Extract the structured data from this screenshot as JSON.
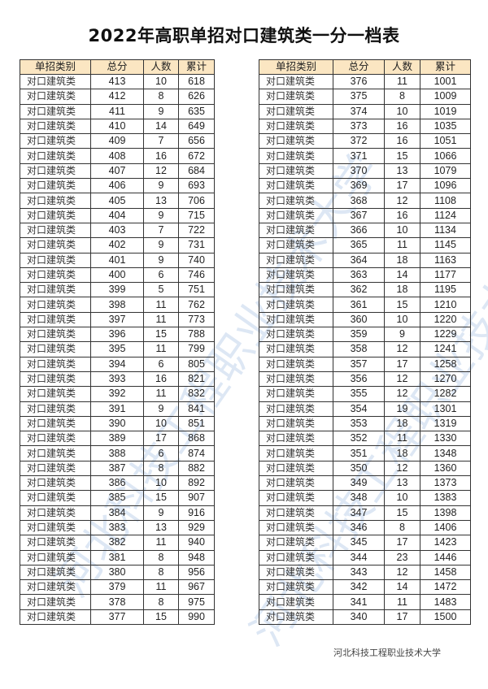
{
  "title": "2022年高职单招对口建筑类一分一档表",
  "headers": [
    "单招类别",
    "总分",
    "人数",
    "累计"
  ],
  "left_rows": [
    [
      "对口建筑类",
      413,
      10,
      618
    ],
    [
      "对口建筑类",
      412,
      8,
      626
    ],
    [
      "对口建筑类",
      411,
      9,
      635
    ],
    [
      "对口建筑类",
      410,
      14,
      649
    ],
    [
      "对口建筑类",
      409,
      7,
      656
    ],
    [
      "对口建筑类",
      408,
      16,
      672
    ],
    [
      "对口建筑类",
      407,
      12,
      684
    ],
    [
      "对口建筑类",
      406,
      9,
      693
    ],
    [
      "对口建筑类",
      405,
      13,
      706
    ],
    [
      "对口建筑类",
      404,
      9,
      715
    ],
    [
      "对口建筑类",
      403,
      7,
      722
    ],
    [
      "对口建筑类",
      402,
      9,
      731
    ],
    [
      "对口建筑类",
      401,
      9,
      740
    ],
    [
      "对口建筑类",
      400,
      6,
      746
    ],
    [
      "对口建筑类",
      399,
      5,
      751
    ],
    [
      "对口建筑类",
      398,
      11,
      762
    ],
    [
      "对口建筑类",
      397,
      11,
      773
    ],
    [
      "对口建筑类",
      396,
      15,
      788
    ],
    [
      "对口建筑类",
      395,
      11,
      799
    ],
    [
      "对口建筑类",
      394,
      6,
      805
    ],
    [
      "对口建筑类",
      393,
      16,
      821
    ],
    [
      "对口建筑类",
      392,
      11,
      832
    ],
    [
      "对口建筑类",
      391,
      9,
      841
    ],
    [
      "对口建筑类",
      390,
      10,
      851
    ],
    [
      "对口建筑类",
      389,
      17,
      868
    ],
    [
      "对口建筑类",
      388,
      6,
      874
    ],
    [
      "对口建筑类",
      387,
      8,
      882
    ],
    [
      "对口建筑类",
      386,
      10,
      892
    ],
    [
      "对口建筑类",
      385,
      15,
      907
    ],
    [
      "对口建筑类",
      384,
      9,
      916
    ],
    [
      "对口建筑类",
      383,
      13,
      929
    ],
    [
      "对口建筑类",
      382,
      11,
      940
    ],
    [
      "对口建筑类",
      381,
      8,
      948
    ],
    [
      "对口建筑类",
      380,
      8,
      956
    ],
    [
      "对口建筑类",
      379,
      11,
      967
    ],
    [
      "对口建筑类",
      378,
      8,
      975
    ],
    [
      "对口建筑类",
      377,
      15,
      990
    ]
  ],
  "right_rows": [
    [
      "对口建筑类",
      376,
      11,
      1001
    ],
    [
      "对口建筑类",
      375,
      8,
      1009
    ],
    [
      "对口建筑类",
      374,
      10,
      1019
    ],
    [
      "对口建筑类",
      373,
      16,
      1035
    ],
    [
      "对口建筑类",
      372,
      16,
      1051
    ],
    [
      "对口建筑类",
      371,
      15,
      1066
    ],
    [
      "对口建筑类",
      370,
      13,
      1079
    ],
    [
      "对口建筑类",
      369,
      17,
      1096
    ],
    [
      "对口建筑类",
      368,
      12,
      1108
    ],
    [
      "对口建筑类",
      367,
      16,
      1124
    ],
    [
      "对口建筑类",
      366,
      10,
      1134
    ],
    [
      "对口建筑类",
      365,
      11,
      1145
    ],
    [
      "对口建筑类",
      364,
      18,
      1163
    ],
    [
      "对口建筑类",
      363,
      14,
      1177
    ],
    [
      "对口建筑类",
      362,
      18,
      1195
    ],
    [
      "对口建筑类",
      361,
      15,
      1210
    ],
    [
      "对口建筑类",
      360,
      10,
      1220
    ],
    [
      "对口建筑类",
      359,
      9,
      1229
    ],
    [
      "对口建筑类",
      358,
      12,
      1241
    ],
    [
      "对口建筑类",
      357,
      17,
      1258
    ],
    [
      "对口建筑类",
      356,
      12,
      1270
    ],
    [
      "对口建筑类",
      355,
      12,
      1282
    ],
    [
      "对口建筑类",
      354,
      19,
      1301
    ],
    [
      "对口建筑类",
      353,
      18,
      1319
    ],
    [
      "对口建筑类",
      352,
      11,
      1330
    ],
    [
      "对口建筑类",
      351,
      18,
      1348
    ],
    [
      "对口建筑类",
      350,
      12,
      1360
    ],
    [
      "对口建筑类",
      349,
      13,
      1373
    ],
    [
      "对口建筑类",
      348,
      10,
      1383
    ],
    [
      "对口建筑类",
      347,
      15,
      1398
    ],
    [
      "对口建筑类",
      346,
      8,
      1406
    ],
    [
      "对口建筑类",
      345,
      17,
      1423
    ],
    [
      "对口建筑类",
      344,
      23,
      1446
    ],
    [
      "对口建筑类",
      343,
      12,
      1458
    ],
    [
      "对口建筑类",
      342,
      14,
      1472
    ],
    [
      "对口建筑类",
      341,
      11,
      1483
    ],
    [
      "对口建筑类",
      340,
      17,
      1500
    ]
  ],
  "footer": "河北科技工程职业技术大学",
  "watermark": "河北科技工程职业技术大学",
  "colors": {
    "header_bg": "#fbe6c2",
    "watermark": "#a0bfe0"
  }
}
